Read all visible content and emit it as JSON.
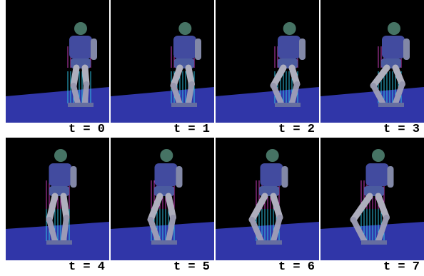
{
  "frames": [
    {
      "label": "t = 0"
    },
    {
      "label": "t = 1"
    },
    {
      "label": "t = 2"
    },
    {
      "label": "t = 3"
    },
    {
      "label": "t = 4"
    },
    {
      "label": "t = 5"
    },
    {
      "label": "t = 6"
    },
    {
      "label": "t = 7"
    }
  ]
}
